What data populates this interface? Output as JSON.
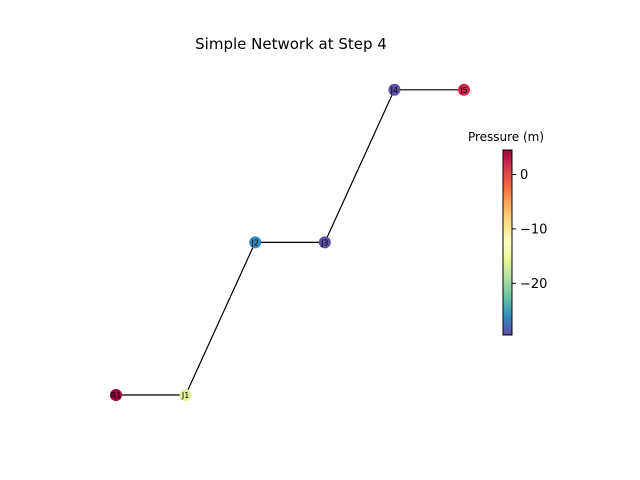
{
  "title": "Simple Network at Step 4",
  "colorbar": {
    "label": "Pressure (m)",
    "min": -29.5,
    "max": 4.5,
    "colormap": "Spectral",
    "ticks": [
      {
        "value": 0,
        "label": "0"
      },
      {
        "value": -10,
        "label": "−10"
      },
      {
        "value": -20,
        "label": "−20"
      }
    ]
  },
  "nodes": [
    {
      "id": "R1",
      "label": "R1",
      "x": 0,
      "y": 0,
      "pressure": 4.5
    },
    {
      "id": "J1",
      "label": "J1",
      "x": 1,
      "y": 0,
      "pressure": -16
    },
    {
      "id": "J2",
      "label": "J2",
      "x": 2,
      "y": 2,
      "pressure": -26
    },
    {
      "id": "J3",
      "label": "J3",
      "x": 3,
      "y": 2,
      "pressure": -29.5
    },
    {
      "id": "J4",
      "label": "J4",
      "x": 4,
      "y": 4,
      "pressure": -29.5
    },
    {
      "id": "J5",
      "label": "J5",
      "x": 5,
      "y": 4,
      "pressure": 2
    }
  ],
  "links": [
    {
      "from": "R1",
      "to": "J1"
    },
    {
      "from": "J1",
      "to": "J2"
    },
    {
      "from": "J2",
      "to": "J3"
    },
    {
      "from": "J3",
      "to": "J4"
    },
    {
      "from": "J4",
      "to": "J5"
    }
  ]
}
